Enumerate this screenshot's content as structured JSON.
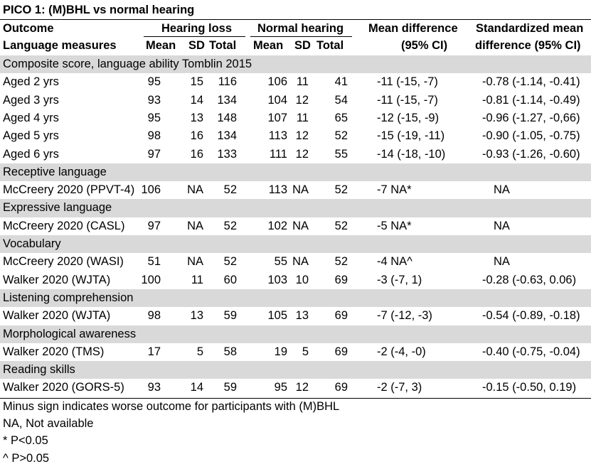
{
  "title": "PICO 1: (M)BHL vs normal hearing",
  "header": {
    "outcome": "Outcome",
    "language_measures": "Language measures",
    "hearing_loss": "Hearing loss",
    "normal_hearing": "Normal hearing",
    "mean": "Mean",
    "sd": "SD",
    "total": "Total",
    "mean_difference": "Mean difference",
    "mean_difference_ci": "(95% CI)",
    "smd_line1": "Standardized mean",
    "smd_line2": "difference (95% CI)"
  },
  "rows": [
    {
      "type": "section",
      "label": "Composite score, language ability Tomblin 2015"
    },
    {
      "type": "data",
      "label": "Aged 2 yrs",
      "hl_mean": "95",
      "hl_sd": "15",
      "hl_total": "116",
      "nh_mean": "106",
      "nh_sd": "11",
      "nh_total": "41",
      "md": "-11 (-15, -7)",
      "smd": "-0.78 (-1.14, -0.41)"
    },
    {
      "type": "data",
      "label": "Aged 3 yrs",
      "hl_mean": "93",
      "hl_sd": "14",
      "hl_total": "134",
      "nh_mean": "104",
      "nh_sd": "12",
      "nh_total": "54",
      "md": "-11 (-15, -7)",
      "smd": "-0.81 (-1.14, -0.49)"
    },
    {
      "type": "data",
      "label": "Aged 4 yrs",
      "hl_mean": "95",
      "hl_sd": "13",
      "hl_total": "148",
      "nh_mean": "107",
      "nh_sd": "11",
      "nh_total": "65",
      "md": "-12 (-15, -9)",
      "smd": "-0.96 (-1.27, -0,66)"
    },
    {
      "type": "data",
      "label": "Aged 5 yrs",
      "hl_mean": "98",
      "hl_sd": "16",
      "hl_total": "134",
      "nh_mean": "113",
      "nh_sd": "12",
      "nh_total": "52",
      "md": "-15 (-19, -11)",
      "smd": "-0.90 (-1.05, -0.75)"
    },
    {
      "type": "data",
      "label": "Aged 6 yrs",
      "hl_mean": "97",
      "hl_sd": "16",
      "hl_total": "133",
      "nh_mean": "111",
      "nh_sd": "12",
      "nh_total": "55",
      "md": "-14 (-18, -10)",
      "smd": "-0.93 (-1.26, -0.60)"
    },
    {
      "type": "section",
      "label": "Receptive language"
    },
    {
      "type": "data",
      "label": "McCreery 2020 (PPVT-4)",
      "hl_mean": "106",
      "hl_sd": "NA",
      "hl_total": "52",
      "nh_mean": "113",
      "nh_sd": "NA",
      "nh_total": "52",
      "md": "-7 NA*",
      "smd": "NA"
    },
    {
      "type": "section",
      "label": "Expressive language"
    },
    {
      "type": "data",
      "label": "McCreery 2020 (CASL)",
      "hl_mean": "97",
      "hl_sd": "NA",
      "hl_total": "52",
      "nh_mean": "102",
      "nh_sd": "NA",
      "nh_total": "52",
      "md": "-5 NA*",
      "smd": "NA"
    },
    {
      "type": "section",
      "label": "Vocabulary"
    },
    {
      "type": "data",
      "label": "McCreery 2020 (WASI)",
      "hl_mean": "51",
      "hl_sd": "NA",
      "hl_total": "52",
      "nh_mean": "55",
      "nh_sd": "NA",
      "nh_total": "52",
      "md": "-4 NA^",
      "smd": "NA"
    },
    {
      "type": "data",
      "label": "Walker 2020 (WJTA)",
      "hl_mean": "100",
      "hl_sd": "11",
      "hl_total": "60",
      "nh_mean": "103",
      "nh_sd": "10",
      "nh_total": "69",
      "md": "-3 (-7, 1)",
      "smd": "-0.28 (-0.63, 0.06)"
    },
    {
      "type": "section",
      "label": "Listening comprehension"
    },
    {
      "type": "data",
      "label": "Walker 2020 (WJTA)",
      "hl_mean": "98",
      "hl_sd": "13",
      "hl_total": "59",
      "nh_mean": "105",
      "nh_sd": "13",
      "nh_total": "69",
      "md": "-7 (-12, -3)",
      "smd": "-0.54 (-0.89, -0.18)"
    },
    {
      "type": "section",
      "label": "Morphological awareness"
    },
    {
      "type": "data",
      "label": "Walker 2020 (TMS)",
      "hl_mean": "17",
      "hl_sd": "5",
      "hl_total": "58",
      "nh_mean": "19",
      "nh_sd": "5",
      "nh_total": "69",
      "md": "-2 (-4, -0)",
      "smd": "-0.40 (-0.75, -0.04)"
    },
    {
      "type": "section",
      "label": "Reading skills"
    },
    {
      "type": "data",
      "label": "Walker 2020 (GORS-5)",
      "hl_mean": "93",
      "hl_sd": "14",
      "hl_total": "59",
      "nh_mean": "95",
      "nh_sd": "12",
      "nh_total": "69",
      "md": "-2 (-7, 3)",
      "smd": "-0.15 (-0.50, 0.19)"
    }
  ],
  "footnotes": [
    "Minus sign indicates worse outcome for participants with (M)BHL",
    "NA, Not available",
    "* P<0.05",
    "^ P>0.05"
  ]
}
